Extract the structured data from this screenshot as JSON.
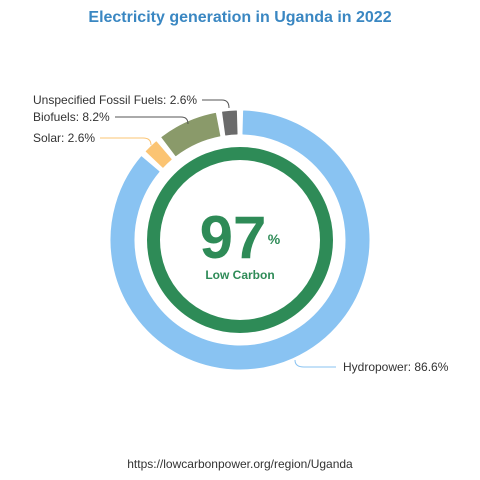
{
  "title": "Electricity generation in Uganda in 2022",
  "footer": "https://lowcarbonpower.org/region/Uganda",
  "center": {
    "value": "97",
    "unit": "%",
    "label": "Low Carbon"
  },
  "colors": {
    "title": "#3a87c2",
    "low_carbon_ring": "#2e8b57",
    "label_text": "#333333"
  },
  "chart_data": {
    "type": "pie",
    "title": "Electricity generation in Uganda in 2022",
    "slices": [
      {
        "name": "Hydropower",
        "value": 86.6,
        "label": "Hydropower: 86.6%",
        "color": "#89c3f2"
      },
      {
        "name": "Solar",
        "value": 2.6,
        "label": "Solar: 2.6%",
        "color": "#fbc473"
      },
      {
        "name": "Biofuels",
        "value": 8.2,
        "label": "Biofuels: 8.2%",
        "color": "#8a9a6a"
      },
      {
        "name": "Unspecified Fossil Fuels",
        "value": 2.6,
        "label": "Unspecified Fossil Fuels: 2.6%",
        "color": "#6b6b6b"
      }
    ],
    "low_carbon_share": 97
  }
}
